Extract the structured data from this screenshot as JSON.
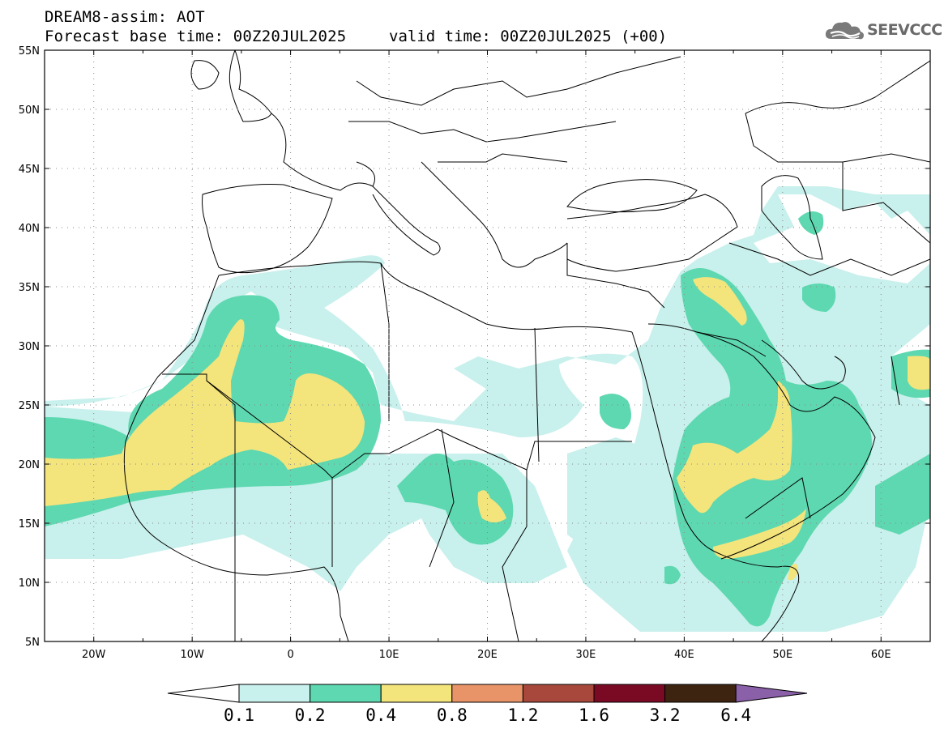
{
  "header": {
    "title": "DREAM8-assim: AOT",
    "base_time": "Forecast base time: 00Z20JUL2025",
    "valid_time": "valid time: 00Z20JUL2025 (+00)",
    "logo_text": "SEEVCCC"
  },
  "map": {
    "lat_labels": [
      "55N",
      "50N",
      "45N",
      "40N",
      "35N",
      "30N",
      "25N",
      "20N",
      "15N",
      "10N",
      "5N"
    ],
    "lon_labels": [
      "20W",
      "10W",
      "0",
      "10E",
      "20E",
      "30E",
      "40E",
      "50E",
      "60E"
    ],
    "lat_range": [
      5,
      55
    ],
    "lon_range": [
      -25,
      65
    ],
    "grid": "dotted"
  },
  "colorbar": {
    "labels": [
      "0.1",
      "0.2",
      "0.4",
      "0.8",
      "1.2",
      "1.6",
      "3.2",
      "6.4"
    ],
    "colors": [
      "#c8f0ec",
      "#5ed8b0",
      "#f4e47c",
      "#e89468",
      "#a8483c",
      "#7a0a24",
      "#3c2410",
      "#8a60a8"
    ],
    "below_color": "#ffffff"
  },
  "field_colors": {
    "low": "#c8f0ec",
    "mid": "#5ed8b0",
    "high": "#f4e47c"
  }
}
